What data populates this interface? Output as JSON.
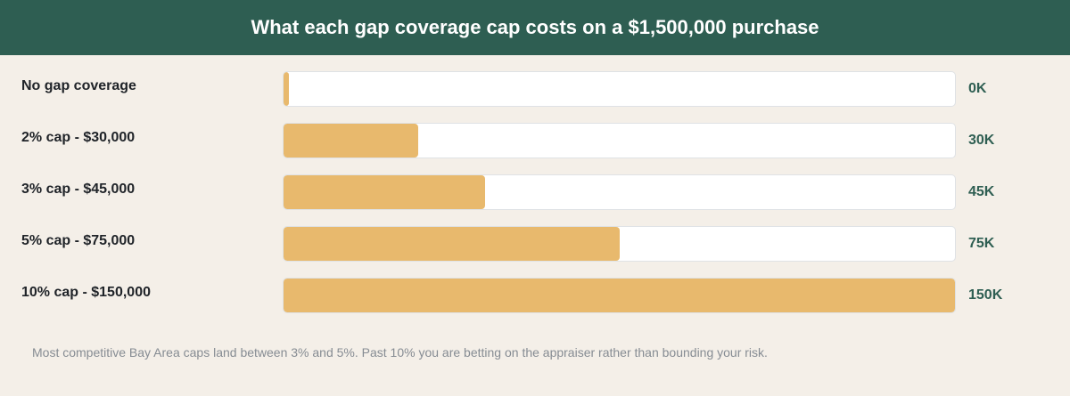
{
  "header": {
    "title": "What each gap coverage cap costs on a $1,500,000 purchase"
  },
  "chart_data": {
    "type": "bar",
    "orientation": "horizontal",
    "title": "What each gap coverage cap costs on a $1,500,000 purchase",
    "categories": [
      "No gap coverage",
      "2% cap - $30,000",
      "3% cap - $45,000",
      "5% cap - $75,000",
      "10% cap - $150,000"
    ],
    "values": [
      0,
      30000,
      45000,
      75000,
      150000
    ],
    "value_labels": [
      "0K",
      "30K",
      "45K",
      "75K",
      "150K"
    ],
    "xlim": [
      0,
      150000
    ],
    "grid": false,
    "colors": {
      "bar": "#e8b96d",
      "track": "#ffffff",
      "value_label": "#2e5e52",
      "header": "#2e5e52"
    }
  },
  "footnote": "Most competitive Bay Area caps land between 3% and 5%. Past 10% you are betting on the appraiser rather than bounding your risk."
}
